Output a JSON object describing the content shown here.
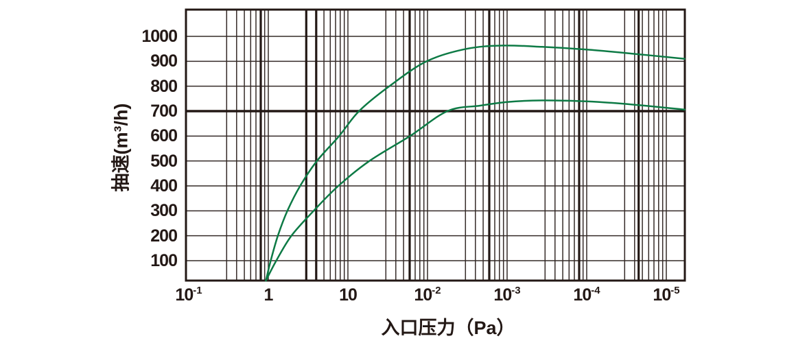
{
  "colors": {
    "ink": "#231815",
    "curve_green": "#0d7a45",
    "background": "#ffffff"
  },
  "chart_data": {
    "type": "line",
    "title": "",
    "xlabel": "入口压力（Pa）",
    "ylabel": "抽速(m³/h)",
    "legend": null,
    "grid": "log-log graph paper, black grid on white",
    "x_axis": {
      "scale": "log-decades",
      "tick_labels": [
        "10⁻¹",
        "1",
        "10",
        "10⁻²",
        "10⁻³",
        "10⁻⁴",
        "10⁻⁵"
      ],
      "tick_labels_rich": [
        {
          "base": "10",
          "exp": "-1"
        },
        {
          "base": "1",
          "exp": ""
        },
        {
          "base": "10",
          "exp": ""
        },
        {
          "base": "10",
          "exp": "-2"
        },
        {
          "base": "10",
          "exp": "-3"
        },
        {
          "base": "10",
          "exp": "-4"
        },
        {
          "base": "10",
          "exp": "-5"
        }
      ],
      "minor_divisions_per_decade": [
        3,
        4,
        5,
        6,
        7,
        8,
        9
      ],
      "decades_span": 6.23
    },
    "y_axis": {
      "min": 0,
      "max": 1100,
      "ticks": [
        100,
        200,
        300,
        400,
        500,
        600,
        700,
        800,
        900,
        1000
      ],
      "bold_gridline_at": 700
    },
    "series": [
      {
        "name": "pumping-speed-curve-upper",
        "color": "#0d7a45",
        "points_decade_speed": [
          [
            0.97,
            20
          ],
          [
            1.03,
            100
          ],
          [
            1.12,
            200
          ],
          [
            1.24,
            300
          ],
          [
            1.4,
            400
          ],
          [
            1.61,
            500
          ],
          [
            1.89,
            600
          ],
          [
            2.14,
            700
          ],
          [
            2.52,
            800
          ],
          [
            2.99,
            900
          ],
          [
            3.49,
            950
          ],
          [
            3.95,
            963
          ],
          [
            4.44,
            958
          ],
          [
            5.0,
            947
          ],
          [
            5.56,
            931
          ],
          [
            6.23,
            910
          ]
        ]
      },
      {
        "name": "pumping-speed-curve-lower",
        "color": "#0d7a45",
        "points_decade_speed": [
          [
            0.97,
            20
          ],
          [
            1.1,
            100
          ],
          [
            1.29,
            200
          ],
          [
            1.57,
            300
          ],
          [
            1.88,
            400
          ],
          [
            2.27,
            500
          ],
          [
            2.78,
            600
          ],
          [
            3.25,
            700
          ],
          [
            3.66,
            722
          ],
          [
            4.01,
            737
          ],
          [
            4.44,
            743
          ],
          [
            5.0,
            739
          ],
          [
            5.56,
            727
          ],
          [
            6.23,
            706
          ]
        ]
      }
    ],
    "thick_vertical_gridlines_decades": [
      0.905,
      1.477,
      1.602,
      2.776,
      3.776,
      4.905,
      5.653
    ]
  }
}
